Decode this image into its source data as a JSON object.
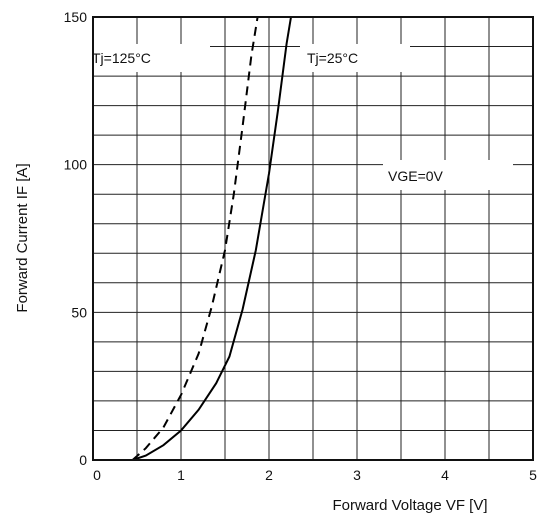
{
  "chart_data": {
    "type": "line",
    "title": "",
    "xlabel": "Forward Voltage VF [V]",
    "ylabel": "Forward Current IF [A]",
    "xlim": [
      0,
      5
    ],
    "ylim": [
      0,
      150
    ],
    "x_ticks": [
      "0",
      "1",
      "2",
      "3",
      "4",
      "5"
    ],
    "y_ticks": [
      "0",
      "50",
      "100",
      "150"
    ],
    "x_minor_step": 0.5,
    "y_minor_step": 10,
    "grid": true,
    "series": [
      {
        "name": "Tj=25°C",
        "line_style": "solid",
        "x": [
          0.45,
          0.6,
          0.8,
          1.0,
          1.2,
          1.4,
          1.55,
          1.7,
          1.85,
          2.0,
          2.1,
          2.2,
          2.25
        ],
        "y": [
          0,
          1.5,
          5,
          10,
          17,
          26,
          35,
          51,
          71,
          97,
          118,
          141,
          150
        ]
      },
      {
        "name": "Tj=125°C",
        "line_style": "dashed",
        "x": [
          0.45,
          0.6,
          0.8,
          1.0,
          1.2,
          1.35,
          1.5,
          1.6,
          1.7,
          1.8,
          1.87
        ],
        "y": [
          0,
          4,
          11,
          22,
          36,
          52,
          71,
          90,
          113,
          137,
          150
        ]
      }
    ],
    "annotations": [
      {
        "text": "Tj=125°C"
      },
      {
        "text": "Tj=25°C"
      },
      {
        "text": "VGE=0V"
      }
    ]
  }
}
